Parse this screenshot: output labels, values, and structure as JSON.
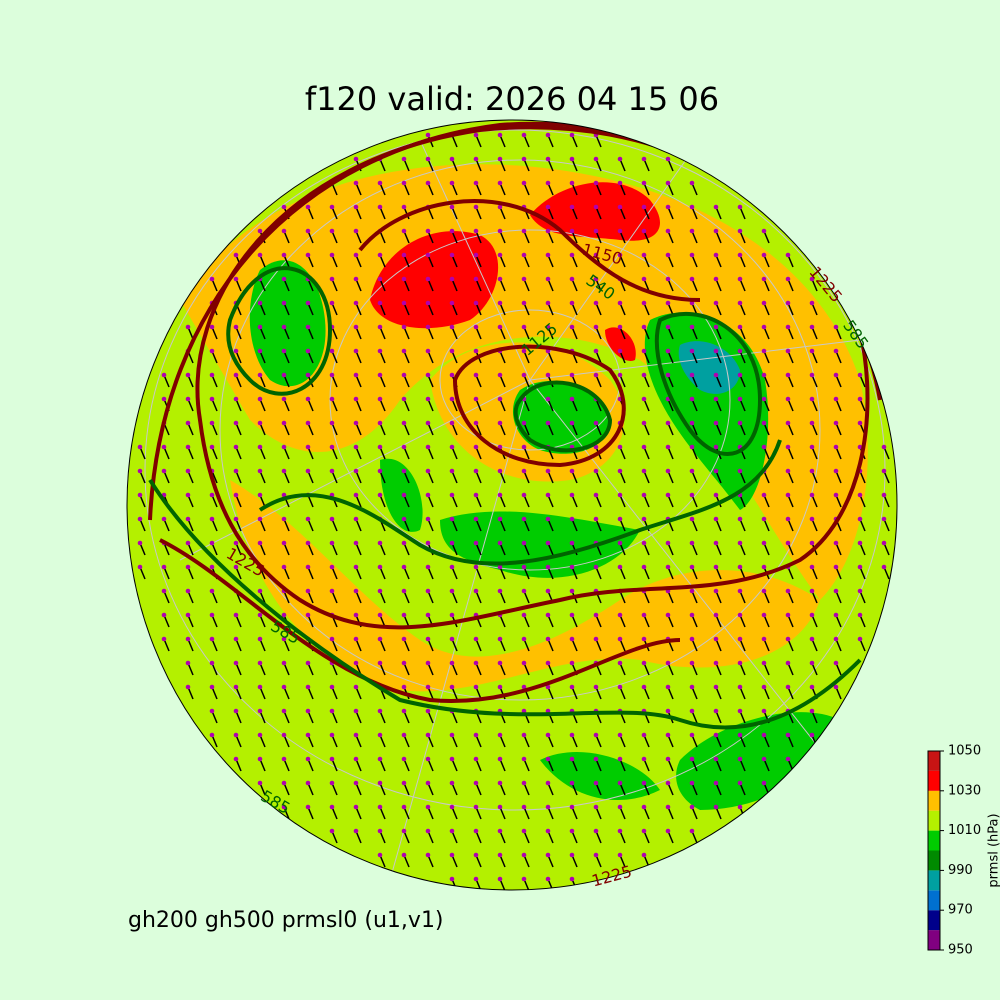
{
  "title": "f120 valid:   2026 04 15 06",
  "subtitle": "gh200 gh500 prmsl0 (u1,v1)",
  "contour_labels": [
    "1225",
    "585",
    "1150",
    "540",
    "1125",
    "1225",
    "585",
    "585",
    "1225"
  ],
  "colorbar": {
    "label": "prmsl (hPa)",
    "lim": [
      950,
      1050
    ],
    "levels": [
      950,
      960,
      970,
      980,
      990,
      1000,
      1010,
      1020,
      1030,
      1040,
      1050
    ],
    "colors": [
      "#800080",
      "#00008b",
      "#0070d0",
      "#00a0a0",
      "#008a00",
      "#00cc00",
      "#b4f000",
      "#ffc000",
      "#ff0000",
      "#c81414"
    ],
    "ticks": [
      950,
      970,
      990,
      1010,
      1030,
      1050
    ]
  }
}
